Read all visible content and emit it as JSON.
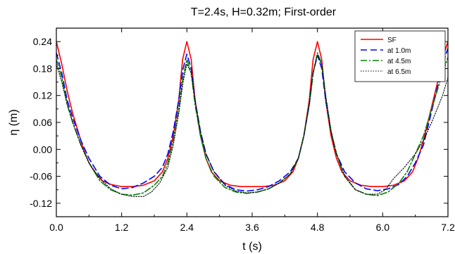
{
  "chart_data": {
    "type": "line",
    "title": "T=2.4s, H=0.32m;  First-order",
    "xlabel": "t (s)",
    "ylabel": "η (m)",
    "xlim": [
      0.0,
      7.2
    ],
    "ylim": [
      -0.15,
      0.27
    ],
    "xticks": [
      "0.0",
      "1.2",
      "2.4",
      "3.6",
      "4.8",
      "6.0",
      "7.2"
    ],
    "yticks": [
      "-0.12",
      "-0.06",
      "0.00",
      "0.06",
      "0.12",
      "0.18",
      "0.24"
    ],
    "grid": false,
    "legend_position": "top-right",
    "series": [
      {
        "name": "SF",
        "color": "#ff0000",
        "style": "solid",
        "points": [
          [
            0.0,
            0.24
          ],
          [
            0.1,
            0.19
          ],
          [
            0.2,
            0.13
          ],
          [
            0.3,
            0.08
          ],
          [
            0.4,
            0.04
          ],
          [
            0.5,
            0.0
          ],
          [
            0.6,
            -0.03
          ],
          [
            0.7,
            -0.05
          ],
          [
            0.85,
            -0.07
          ],
          [
            1.0,
            -0.078
          ],
          [
            1.2,
            -0.083
          ],
          [
            1.4,
            -0.083
          ],
          [
            1.6,
            -0.08
          ],
          [
            1.8,
            -0.07
          ],
          [
            1.95,
            -0.05
          ],
          [
            2.05,
            -0.02
          ],
          [
            2.15,
            0.03
          ],
          [
            2.25,
            0.11
          ],
          [
            2.32,
            0.2
          ],
          [
            2.4,
            0.24
          ],
          [
            2.48,
            0.2
          ],
          [
            2.55,
            0.11
          ],
          [
            2.65,
            0.03
          ],
          [
            2.75,
            -0.02
          ],
          [
            2.85,
            -0.05
          ],
          [
            3.0,
            -0.07
          ],
          [
            3.2,
            -0.08
          ],
          [
            3.4,
            -0.083
          ],
          [
            3.6,
            -0.083
          ],
          [
            3.8,
            -0.083
          ],
          [
            4.0,
            -0.08
          ],
          [
            4.2,
            -0.07
          ],
          [
            4.35,
            -0.05
          ],
          [
            4.45,
            -0.02
          ],
          [
            4.55,
            0.03
          ],
          [
            4.65,
            0.11
          ],
          [
            4.72,
            0.2
          ],
          [
            4.8,
            0.24
          ],
          [
            4.88,
            0.2
          ],
          [
            4.95,
            0.11
          ],
          [
            5.05,
            0.03
          ],
          [
            5.15,
            -0.02
          ],
          [
            5.25,
            -0.05
          ],
          [
            5.4,
            -0.07
          ],
          [
            5.6,
            -0.08
          ],
          [
            5.8,
            -0.083
          ],
          [
            6.0,
            -0.083
          ],
          [
            6.2,
            -0.08
          ],
          [
            6.4,
            -0.07
          ],
          [
            6.55,
            -0.05
          ],
          [
            6.65,
            -0.02
          ],
          [
            6.75,
            0.02
          ],
          [
            6.85,
            0.07
          ],
          [
            6.95,
            0.12
          ],
          [
            7.05,
            0.17
          ],
          [
            7.12,
            0.21
          ],
          [
            7.2,
            0.24
          ]
        ]
      },
      {
        "name": "at 1.0m",
        "color": "#0000ff",
        "style": "dash",
        "points": [
          [
            0.0,
            0.215
          ],
          [
            0.1,
            0.17
          ],
          [
            0.2,
            0.11
          ],
          [
            0.3,
            0.07
          ],
          [
            0.45,
            0.02
          ],
          [
            0.6,
            -0.02
          ],
          [
            0.8,
            -0.06
          ],
          [
            1.0,
            -0.08
          ],
          [
            1.2,
            -0.088
          ],
          [
            1.4,
            -0.085
          ],
          [
            1.6,
            -0.075
          ],
          [
            1.8,
            -0.06
          ],
          [
            1.95,
            -0.04
          ],
          [
            2.05,
            -0.01
          ],
          [
            2.15,
            0.04
          ],
          [
            2.25,
            0.11
          ],
          [
            2.33,
            0.18
          ],
          [
            2.4,
            0.212
          ],
          [
            2.48,
            0.18
          ],
          [
            2.55,
            0.11
          ],
          [
            2.65,
            0.04
          ],
          [
            2.75,
            -0.01
          ],
          [
            2.9,
            -0.05
          ],
          [
            3.1,
            -0.078
          ],
          [
            3.3,
            -0.09
          ],
          [
            3.5,
            -0.093
          ],
          [
            3.7,
            -0.09
          ],
          [
            3.9,
            -0.083
          ],
          [
            4.1,
            -0.07
          ],
          [
            4.3,
            -0.05
          ],
          [
            4.45,
            -0.02
          ],
          [
            4.55,
            0.03
          ],
          [
            4.65,
            0.1
          ],
          [
            4.72,
            0.17
          ],
          [
            4.8,
            0.21
          ],
          [
            4.88,
            0.18
          ],
          [
            4.95,
            0.11
          ],
          [
            5.05,
            0.04
          ],
          [
            5.15,
            -0.01
          ],
          [
            5.3,
            -0.05
          ],
          [
            5.5,
            -0.075
          ],
          [
            5.7,
            -0.088
          ],
          [
            5.9,
            -0.092
          ],
          [
            6.1,
            -0.088
          ],
          [
            6.3,
            -0.078
          ],
          [
            6.45,
            -0.06
          ],
          [
            6.6,
            -0.03
          ],
          [
            6.75,
            0.01
          ],
          [
            6.85,
            0.06
          ],
          [
            6.95,
            0.11
          ],
          [
            7.05,
            0.16
          ],
          [
            7.13,
            0.2
          ],
          [
            7.2,
            0.225
          ]
        ]
      },
      {
        "name": "at 4.5m",
        "color": "#008000",
        "style": "dashdot",
        "points": [
          [
            0.0,
            0.2
          ],
          [
            0.1,
            0.16
          ],
          [
            0.2,
            0.1
          ],
          [
            0.3,
            0.06
          ],
          [
            0.45,
            0.01
          ],
          [
            0.6,
            -0.03
          ],
          [
            0.8,
            -0.07
          ],
          [
            1.0,
            -0.09
          ],
          [
            1.2,
            -0.1
          ],
          [
            1.4,
            -0.102
          ],
          [
            1.6,
            -0.097
          ],
          [
            1.8,
            -0.08
          ],
          [
            1.95,
            -0.06
          ],
          [
            2.05,
            -0.03
          ],
          [
            2.15,
            0.02
          ],
          [
            2.25,
            0.09
          ],
          [
            2.33,
            0.16
          ],
          [
            2.4,
            0.2
          ],
          [
            2.48,
            0.17
          ],
          [
            2.55,
            0.1
          ],
          [
            2.65,
            0.03
          ],
          [
            2.75,
            -0.02
          ],
          [
            2.9,
            -0.06
          ],
          [
            3.1,
            -0.085
          ],
          [
            3.3,
            -0.095
          ],
          [
            3.5,
            -0.098
          ],
          [
            3.7,
            -0.095
          ],
          [
            3.9,
            -0.088
          ],
          [
            4.1,
            -0.075
          ],
          [
            4.3,
            -0.055
          ],
          [
            4.45,
            -0.02
          ],
          [
            4.55,
            0.03
          ],
          [
            4.65,
            0.1
          ],
          [
            4.72,
            0.17
          ],
          [
            4.8,
            0.215
          ],
          [
            4.88,
            0.19
          ],
          [
            4.95,
            0.12
          ],
          [
            5.05,
            0.04
          ],
          [
            5.15,
            -0.01
          ],
          [
            5.3,
            -0.06
          ],
          [
            5.5,
            -0.09
          ],
          [
            5.7,
            -0.1
          ],
          [
            5.9,
            -0.103
          ],
          [
            6.1,
            -0.095
          ],
          [
            6.3,
            -0.075
          ],
          [
            6.45,
            -0.05
          ],
          [
            6.6,
            -0.01
          ],
          [
            6.75,
            0.03
          ],
          [
            6.85,
            0.07
          ],
          [
            6.95,
            0.11
          ],
          [
            7.05,
            0.15
          ],
          [
            7.13,
            0.18
          ],
          [
            7.2,
            0.205
          ]
        ]
      },
      {
        "name": "at 6.5m",
        "color": "#000000",
        "style": "dot",
        "points": [
          [
            0.0,
            0.19
          ],
          [
            0.1,
            0.15
          ],
          [
            0.2,
            0.1
          ],
          [
            0.3,
            0.06
          ],
          [
            0.45,
            0.01
          ],
          [
            0.6,
            -0.03
          ],
          [
            0.8,
            -0.065
          ],
          [
            1.0,
            -0.088
          ],
          [
            1.2,
            -0.1
          ],
          [
            1.4,
            -0.105
          ],
          [
            1.6,
            -0.105
          ],
          [
            1.75,
            -0.095
          ],
          [
            1.9,
            -0.075
          ],
          [
            2.05,
            -0.04
          ],
          [
            2.15,
            0.01
          ],
          [
            2.25,
            0.08
          ],
          [
            2.33,
            0.15
          ],
          [
            2.4,
            0.19
          ],
          [
            2.48,
            0.17
          ],
          [
            2.55,
            0.11
          ],
          [
            2.65,
            0.04
          ],
          [
            2.75,
            -0.01
          ],
          [
            2.9,
            -0.05
          ],
          [
            3.1,
            -0.08
          ],
          [
            3.3,
            -0.093
          ],
          [
            3.5,
            -0.097
          ],
          [
            3.7,
            -0.095
          ],
          [
            3.9,
            -0.088
          ],
          [
            4.1,
            -0.075
          ],
          [
            4.3,
            -0.055
          ],
          [
            4.45,
            -0.02
          ],
          [
            4.55,
            0.03
          ],
          [
            4.65,
            0.1
          ],
          [
            4.72,
            0.17
          ],
          [
            4.8,
            0.21
          ],
          [
            4.88,
            0.19
          ],
          [
            4.95,
            0.12
          ],
          [
            5.05,
            0.04
          ],
          [
            5.15,
            -0.01
          ],
          [
            5.3,
            -0.06
          ],
          [
            5.5,
            -0.09
          ],
          [
            5.7,
            -0.1
          ],
          [
            5.9,
            -0.1
          ],
          [
            6.05,
            -0.09
          ],
          [
            6.2,
            -0.065
          ],
          [
            6.4,
            -0.04
          ],
          [
            6.6,
            -0.01
          ],
          [
            6.75,
            0.02
          ],
          [
            6.9,
            0.06
          ],
          [
            7.0,
            0.09
          ],
          [
            7.1,
            0.12
          ],
          [
            7.2,
            0.16
          ]
        ]
      }
    ]
  }
}
